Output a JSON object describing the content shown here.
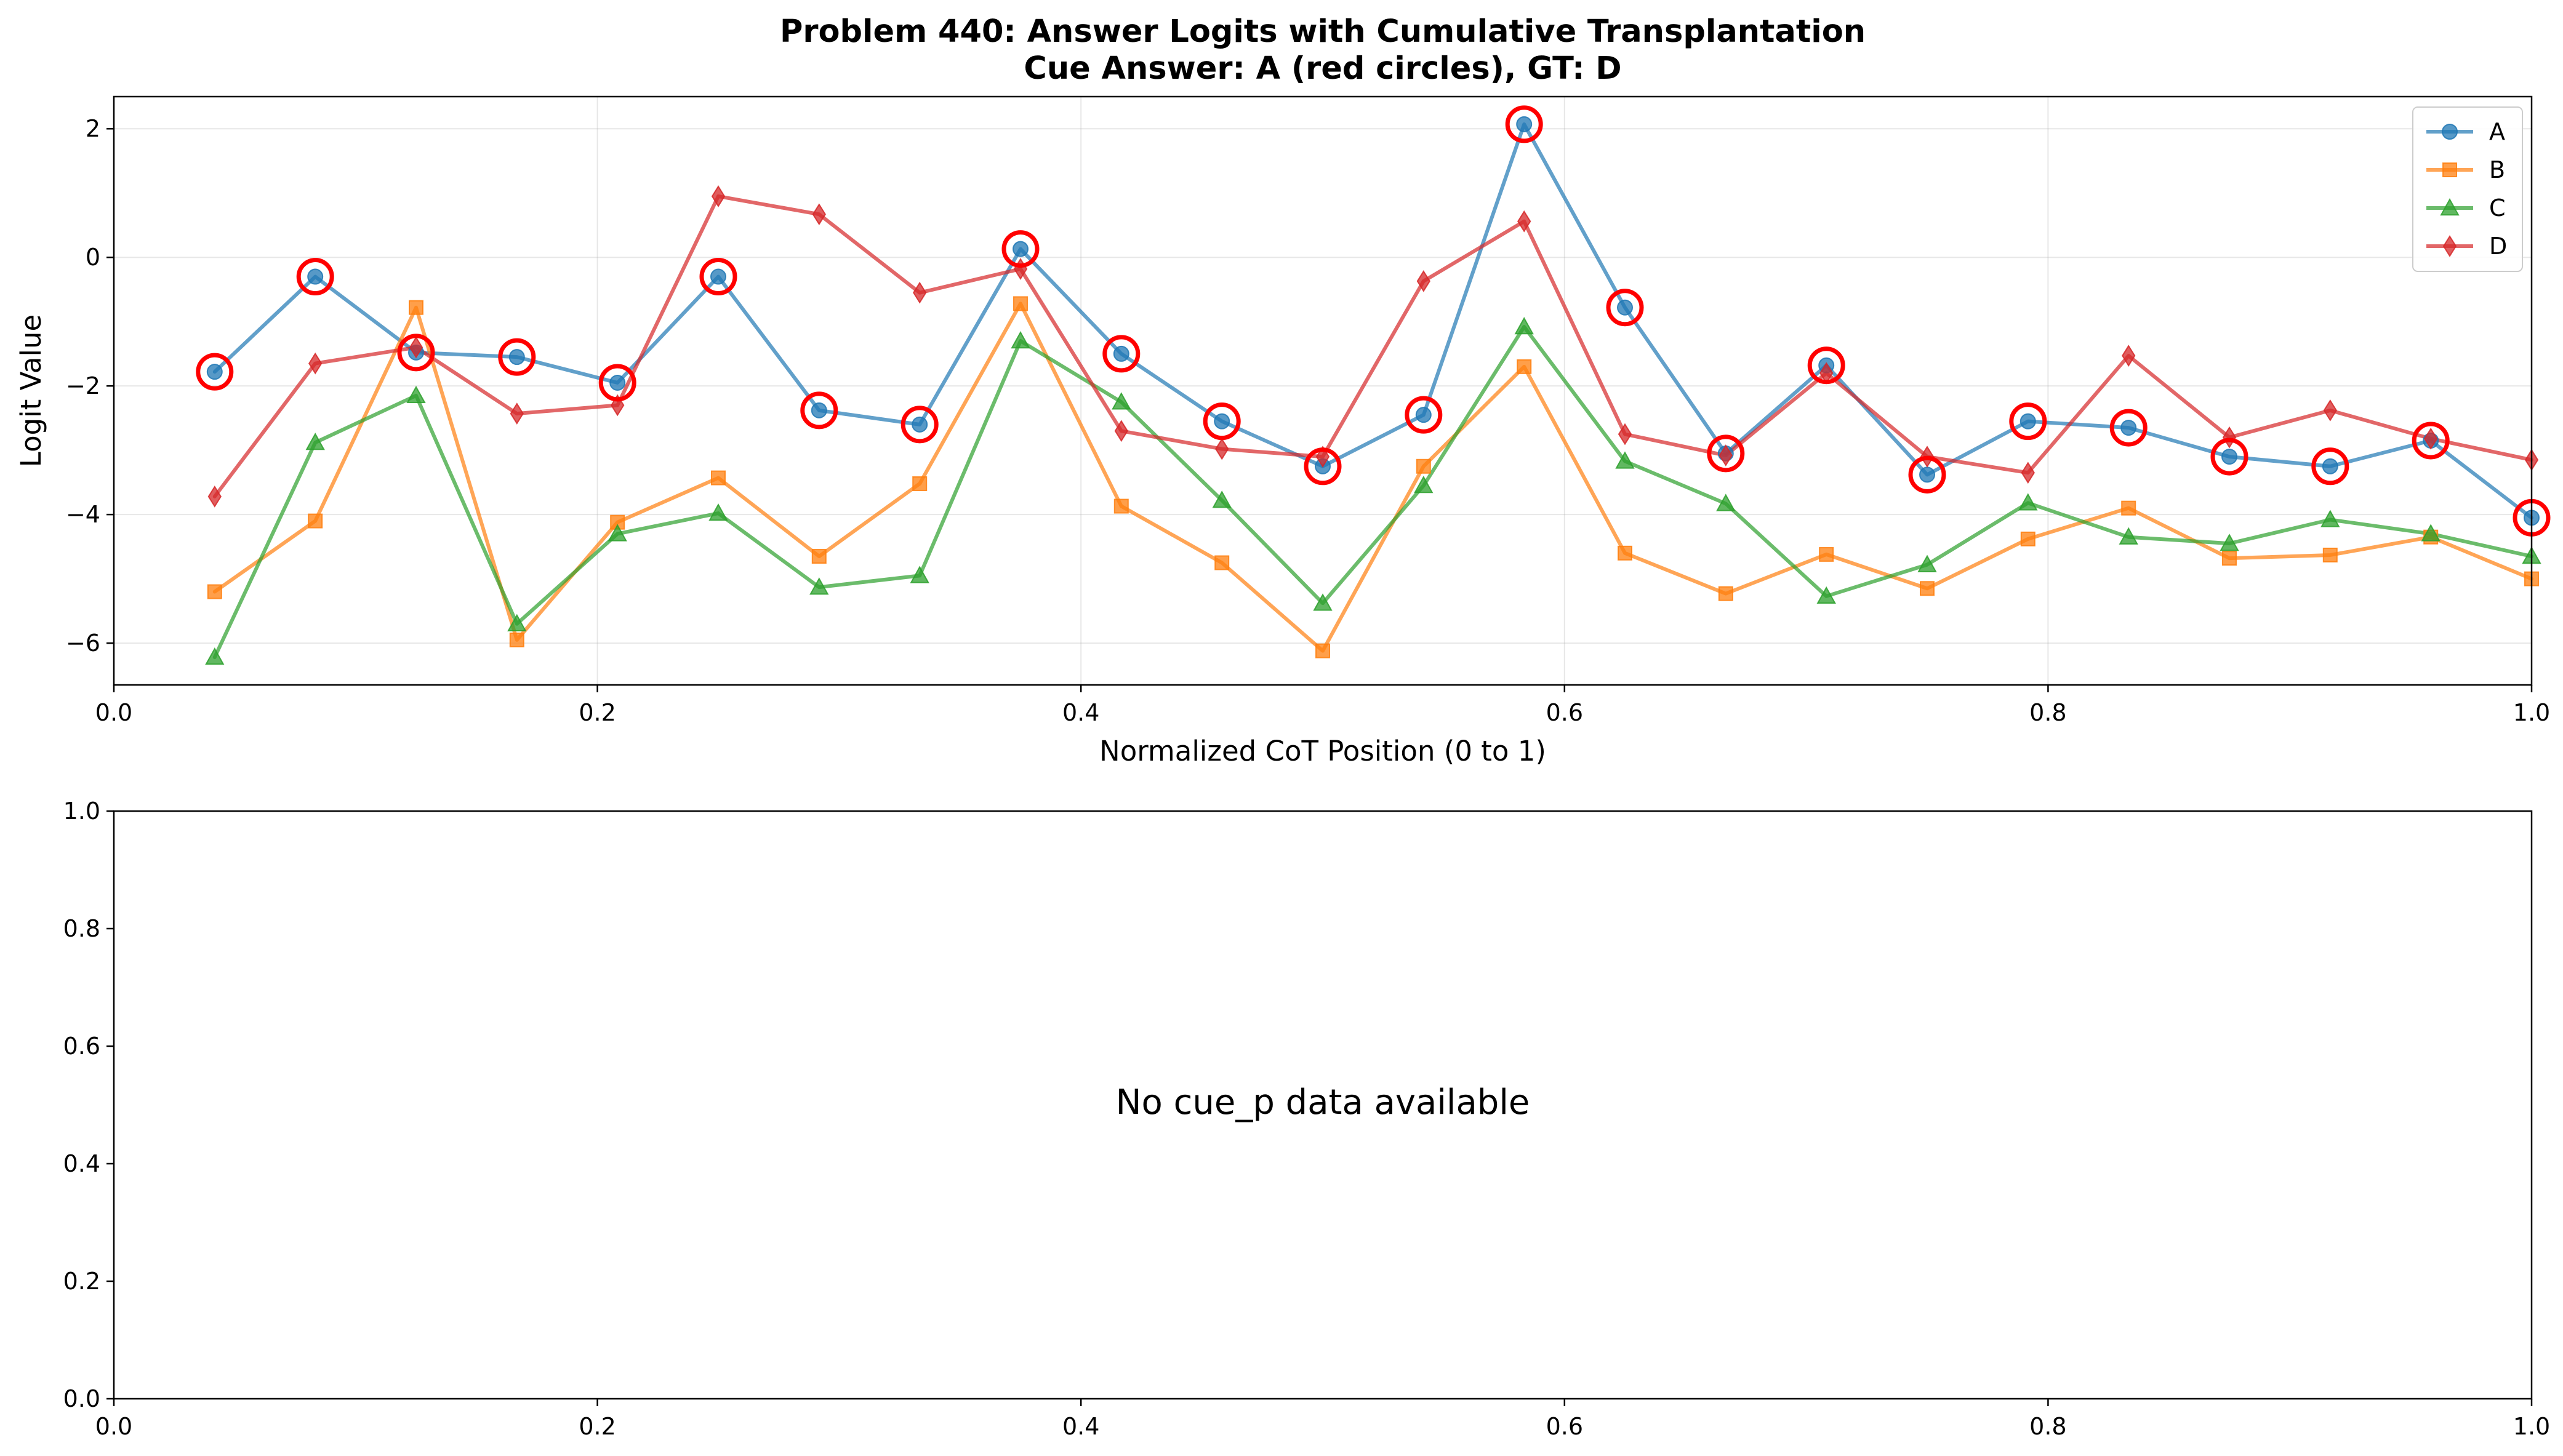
{
  "chart_data": [
    {
      "type": "line",
      "title": "Problem 440: Answer Logits with Cumulative Transplantation",
      "subtitle": "Cue Answer: A (red circles), GT: D",
      "xlabel": "Normalized CoT Position (0 to 1)",
      "ylabel": "Logit Value",
      "xlim": [
        0.0,
        1.0
      ],
      "ylim": [
        -6.65,
        2.5
      ],
      "x_ticks": [
        0.0,
        0.2,
        0.4,
        0.6,
        0.8,
        1.0
      ],
      "x_tick_labels": [
        "0.0",
        "0.2",
        "0.4",
        "0.6",
        "0.8",
        "1.0"
      ],
      "y_ticks": [
        -6,
        -4,
        -2,
        0,
        2
      ],
      "y_tick_labels": [
        "−6",
        "−4",
        "−2",
        "0",
        "2"
      ],
      "grid": true,
      "legend_position": "top-right",
      "x": [
        0.0417,
        0.0833,
        0.125,
        0.1667,
        0.2083,
        0.25,
        0.2917,
        0.3333,
        0.375,
        0.4167,
        0.4583,
        0.5,
        0.5417,
        0.5833,
        0.625,
        0.6667,
        0.7083,
        0.75,
        0.7917,
        0.8333,
        0.875,
        0.9167,
        0.9583,
        1.0
      ],
      "series": [
        {
          "name": "A",
          "color": "#1f77b4",
          "marker": "circle",
          "values": [
            -1.78,
            -0.3,
            -1.48,
            -1.55,
            -1.95,
            -0.3,
            -2.38,
            -2.6,
            0.13,
            -1.5,
            -2.55,
            -3.25,
            -2.45,
            2.07,
            -0.78,
            -3.05,
            -1.68,
            -3.38,
            -2.55,
            -2.65,
            -3.1,
            -3.25,
            -2.85,
            -4.05
          ]
        },
        {
          "name": "B",
          "color": "#ff7f0e",
          "marker": "square",
          "values": [
            -5.2,
            -4.1,
            -0.78,
            -5.95,
            -4.12,
            -3.43,
            -4.65,
            -3.52,
            -0.72,
            -3.87,
            -4.75,
            -6.12,
            -3.25,
            -1.7,
            -4.6,
            -5.23,
            -4.62,
            -5.15,
            -4.38,
            -3.9,
            -4.68,
            -4.63,
            -4.35,
            -5.0
          ]
        },
        {
          "name": "C",
          "color": "#2ca02c",
          "marker": "triangle",
          "values": [
            -6.22,
            -2.88,
            -2.15,
            -5.7,
            -4.3,
            -3.98,
            -5.13,
            -4.95,
            -1.3,
            -2.25,
            -3.78,
            -5.38,
            -3.55,
            -1.08,
            -3.17,
            -3.83,
            -5.27,
            -4.78,
            -3.82,
            -4.35,
            -4.45,
            -4.08,
            -4.3,
            -4.65
          ]
        },
        {
          "name": "D",
          "color": "#d62728",
          "marker": "diamond",
          "values": [
            -3.72,
            -1.65,
            -1.4,
            -2.43,
            -2.3,
            0.95,
            0.67,
            -0.55,
            -0.18,
            -2.7,
            -2.98,
            -3.1,
            -0.37,
            0.56,
            -2.75,
            -3.08,
            -1.8,
            -3.1,
            -3.35,
            -1.53,
            -2.8,
            -2.38,
            -2.82,
            -3.15
          ]
        }
      ],
      "highlight": {
        "series": "A",
        "color": "#ff0000",
        "shape": "open-circle"
      }
    },
    {
      "type": "line",
      "xlim": [
        0.0,
        1.0
      ],
      "ylim": [
        0.0,
        1.0
      ],
      "x_ticks": [
        0.0,
        0.2,
        0.4,
        0.6,
        0.8,
        1.0
      ],
      "x_tick_labels": [
        "0.0",
        "0.2",
        "0.4",
        "0.6",
        "0.8",
        "1.0"
      ],
      "y_ticks": [
        0.0,
        0.2,
        0.4,
        0.6,
        0.8,
        1.0
      ],
      "y_tick_labels": [
        "0.0",
        "0.2",
        "0.4",
        "0.6",
        "0.8",
        "1.0"
      ],
      "grid": false,
      "message": "No cue_p data available"
    }
  ]
}
